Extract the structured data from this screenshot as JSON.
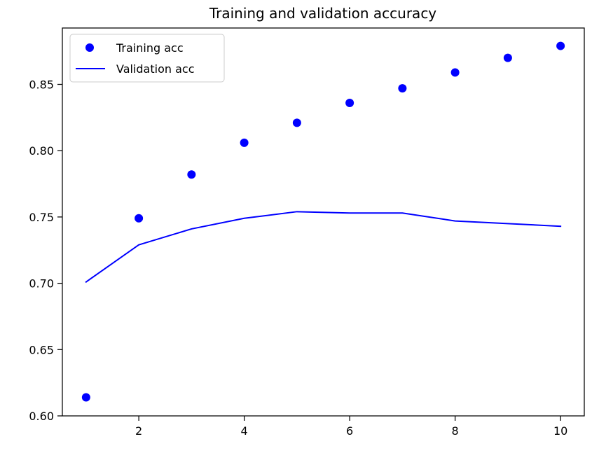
{
  "chart_data": {
    "type": "line",
    "title": "Training and validation accuracy",
    "xlabel": "",
    "ylabel": "",
    "x": [
      1,
      2,
      3,
      4,
      5,
      6,
      7,
      8,
      9,
      10
    ],
    "xlim": [
      0.55,
      10.45
    ],
    "ylim": [
      0.6,
      0.8925
    ],
    "x_ticks": [
      2,
      4,
      6,
      8,
      10
    ],
    "y_ticks": [
      0.6,
      0.65,
      0.7,
      0.75,
      0.8,
      0.85
    ],
    "x_tick_labels": [
      "2",
      "4",
      "6",
      "8",
      "10"
    ],
    "y_tick_labels": [
      "0.60",
      "0.65",
      "0.70",
      "0.75",
      "0.80",
      "0.85"
    ],
    "grid": false,
    "legend_position": "top-left",
    "series": [
      {
        "name": "Training acc",
        "style": "points",
        "color": "#0000ff",
        "values": [
          0.614,
          0.749,
          0.782,
          0.806,
          0.821,
          0.836,
          0.847,
          0.859,
          0.87,
          0.879
        ]
      },
      {
        "name": "Validation acc",
        "style": "line",
        "color": "#0000ff",
        "values": [
          0.701,
          0.729,
          0.741,
          0.749,
          0.754,
          0.753,
          0.753,
          0.747,
          0.745,
          0.743
        ]
      }
    ]
  }
}
